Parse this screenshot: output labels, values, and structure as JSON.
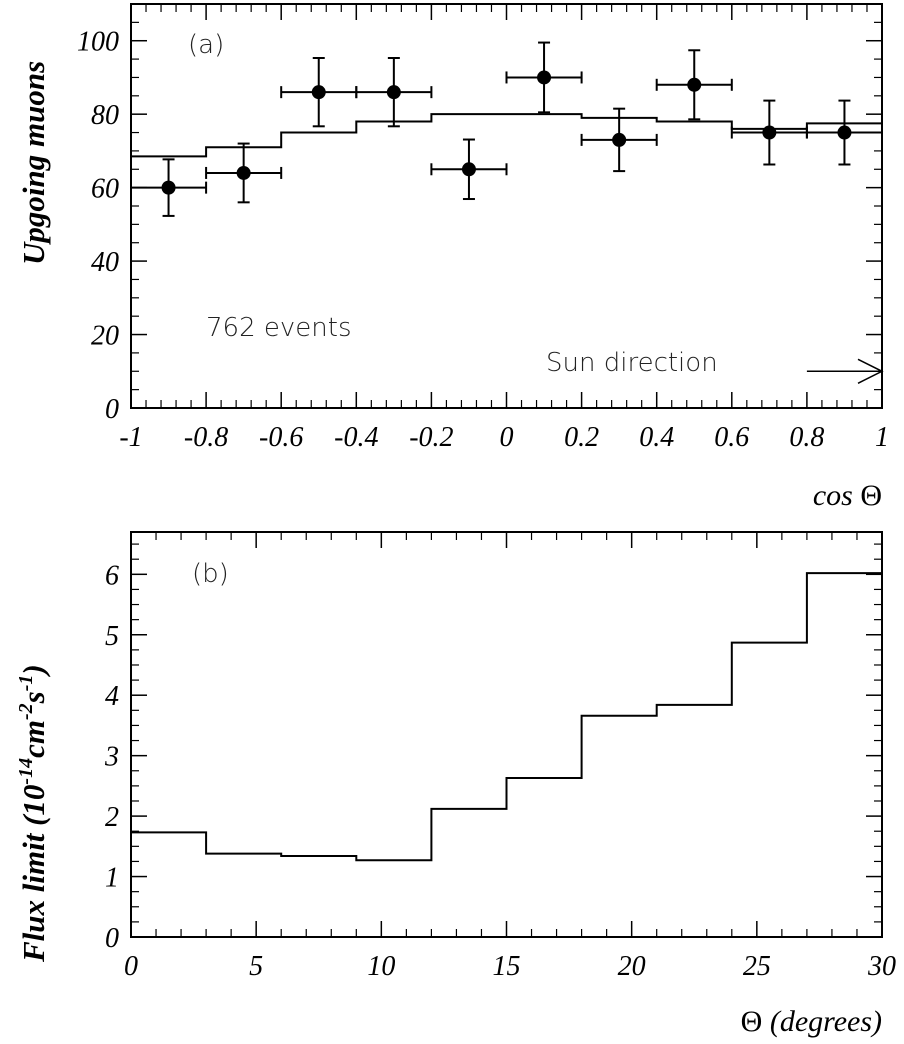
{
  "chart_data": [
    {
      "type": "scatter",
      "panel_label": "(a)",
      "annotations": {
        "events": "762 events",
        "sun": "Sun direction"
      },
      "xlabel_text": "cos",
      "xlabel_symbol": "Θ",
      "ylabel": "Upgoing muons",
      "xlim": [
        -1,
        1
      ],
      "ylim": [
        0,
        110
      ],
      "x_ticks": [
        "-1",
        "-0.8",
        "-0.6",
        "-0.4",
        "-0.2",
        "0",
        "0.2",
        "0.4",
        "0.6",
        "0.8",
        "1"
      ],
      "x_tick_values": [
        -1,
        -0.8,
        -0.6,
        -0.4,
        -0.2,
        0,
        0.2,
        0.4,
        0.6,
        0.8,
        1
      ],
      "y_ticks": [
        "0",
        "20",
        "40",
        "60",
        "80",
        "100"
      ],
      "y_tick_values": [
        0,
        20,
        40,
        60,
        80,
        100
      ],
      "series": [
        {
          "style": "points-with-errors",
          "x": [
            -0.9,
            -0.7,
            -0.5,
            -0.3,
            -0.1,
            0.1,
            0.3,
            0.5,
            0.7,
            0.9
          ],
          "y": [
            60,
            64,
            86,
            86,
            65,
            90,
            73,
            88,
            75,
            75
          ],
          "xerr": [
            0.1,
            0.1,
            0.1,
            0.1,
            0.1,
            0.1,
            0.1,
            0.1,
            0.1,
            0.1
          ],
          "yerr": [
            7.7,
            8,
            9.3,
            9.3,
            8.1,
            9.5,
            8.5,
            9.4,
            8.7,
            8.7
          ]
        },
        {
          "style": "step",
          "bin_edges": [
            -1,
            -0.8,
            -0.6,
            -0.4,
            -0.2,
            0,
            0.2,
            0.4,
            0.6,
            0.8,
            1
          ],
          "values": [
            68.5,
            71,
            75,
            78,
            80,
            80,
            79,
            78,
            76,
            77.5
          ]
        }
      ],
      "arrow": {
        "from_x": 0.8,
        "to_x": 1.0,
        "y": 10
      },
      "grid": false
    },
    {
      "type": "line",
      "style": "step",
      "panel_label": "(b)",
      "ylabel_main": "Flux limit (10",
      "ylabel_exp1": "-14",
      "ylabel_mid": "cm",
      "ylabel_exp2": "-2",
      "ylabel_s": "s",
      "ylabel_exp3": "-1",
      "ylabel_close": ")",
      "xlabel_symbol": "Θ",
      "xlabel_text": "(degrees)",
      "xlim": [
        0,
        30
      ],
      "ylim": [
        0,
        6.7
      ],
      "x_ticks": [
        "0",
        "5",
        "10",
        "15",
        "20",
        "25",
        "30"
      ],
      "x_tick_values": [
        0,
        5,
        10,
        15,
        20,
        25,
        30
      ],
      "y_ticks": [
        "0",
        "1",
        "2",
        "3",
        "4",
        "5",
        "6"
      ],
      "y_tick_values": [
        0,
        1,
        2,
        3,
        4,
        5,
        6
      ],
      "bin_edges": [
        0,
        3,
        6,
        9,
        12,
        15,
        18,
        21,
        24,
        27,
        30
      ],
      "values": [
        1.73,
        1.38,
        1.34,
        1.27,
        2.12,
        2.63,
        3.66,
        3.84,
        4.87,
        6.02
      ],
      "grid": false
    }
  ]
}
